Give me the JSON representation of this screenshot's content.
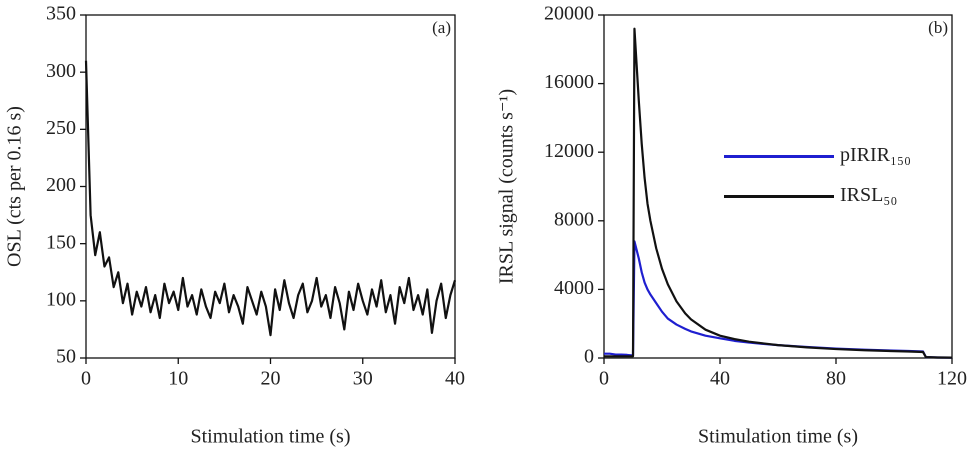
{
  "chart_data": [
    {
      "type": "line",
      "annotation": "(a)",
      "xlabel": "Stimulation time (s)",
      "ylabel": "OSL (cts per 0.16 s)",
      "xlim": [
        0,
        40
      ],
      "ylim": [
        50,
        350
      ],
      "xticks": [
        0,
        10,
        20,
        30,
        40
      ],
      "yticks": [
        50,
        100,
        150,
        200,
        250,
        300,
        350
      ],
      "color": "#111111",
      "x": [
        0,
        0.5,
        1,
        1.5,
        2,
        2.5,
        3,
        3.5,
        4,
        4.5,
        5,
        5.5,
        6,
        6.5,
        7,
        7.5,
        8,
        8.5,
        9,
        9.5,
        10,
        10.5,
        11,
        11.5,
        12,
        12.5,
        13,
        13.5,
        14,
        14.5,
        15,
        15.5,
        16,
        16.5,
        17,
        17.5,
        18,
        18.5,
        19,
        19.5,
        20,
        20.5,
        21,
        21.5,
        22,
        22.5,
        23,
        23.5,
        24,
        24.5,
        25,
        25.5,
        26,
        26.5,
        27,
        27.5,
        28,
        28.5,
        29,
        29.5,
        30,
        30.5,
        31,
        31.5,
        32,
        32.5,
        33,
        33.5,
        34,
        34.5,
        35,
        35.5,
        36,
        36.5,
        37,
        37.5,
        38,
        38.5,
        39,
        39.5,
        40
      ],
      "values": [
        310,
        175,
        140,
        160,
        130,
        138,
        112,
        125,
        98,
        115,
        88,
        108,
        95,
        112,
        90,
        105,
        85,
        115,
        98,
        108,
        92,
        120,
        95,
        105,
        88,
        110,
        95,
        85,
        108,
        98,
        115,
        90,
        105,
        95,
        80,
        112,
        100,
        88,
        108,
        95,
        70,
        110,
        92,
        118,
        98,
        85,
        105,
        115,
        90,
        100,
        120,
        95,
        105,
        85,
        112,
        98,
        75,
        108,
        92,
        115,
        100,
        88,
        110,
        95,
        118,
        90,
        105,
        80,
        112,
        98,
        120,
        92,
        105,
        88,
        110,
        72,
        100,
        115,
        85,
        105,
        118
      ]
    },
    {
      "type": "line",
      "annotation": "(b)",
      "xlabel": "Stimulation time (s)",
      "ylabel": "IRSL signal (counts s⁻¹)",
      "xlim": [
        0,
        120
      ],
      "ylim": [
        0,
        20000
      ],
      "xticks": [
        0,
        40,
        80,
        120
      ],
      "yticks": [
        0,
        4000,
        8000,
        12000,
        16000,
        20000
      ],
      "legend": "center right",
      "x": [
        0,
        2,
        4,
        6,
        8,
        10,
        10.5,
        12,
        13,
        14,
        15,
        16,
        18,
        20,
        22,
        25,
        28,
        30,
        35,
        40,
        45,
        50,
        55,
        60,
        70,
        80,
        90,
        100,
        105,
        110,
        111,
        115,
        120
      ],
      "series": [
        {
          "name": "pIRIR₁₅₀",
          "color": "#1f1fd0",
          "values": [
            250,
            250,
            200,
            200,
            180,
            150,
            6800,
            5800,
            5000,
            4400,
            4000,
            3700,
            3200,
            2700,
            2300,
            1950,
            1700,
            1550,
            1300,
            1150,
            1000,
            900,
            820,
            750,
            640,
            550,
            480,
            430,
            410,
            380,
            50,
            30,
            20
          ]
        },
        {
          "name": "IRSL₅₀",
          "color": "#111111",
          "values": [
            100,
            100,
            100,
            100,
            100,
            100,
            19200,
            15000,
            12500,
            10500,
            9000,
            8000,
            6400,
            5200,
            4300,
            3300,
            2600,
            2250,
            1650,
            1300,
            1100,
            950,
            850,
            750,
            620,
            520,
            450,
            400,
            380,
            350,
            50,
            30,
            20
          ]
        }
      ]
    }
  ]
}
